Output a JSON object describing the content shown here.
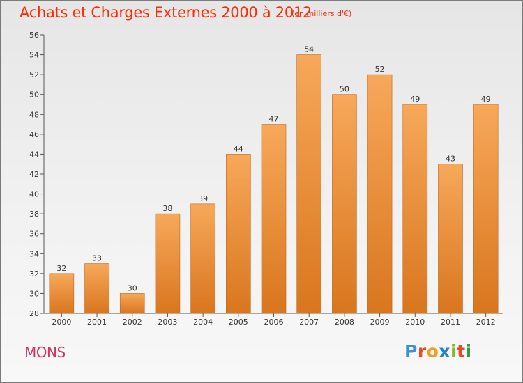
{
  "title": "Achats et Charges Externes 2000 à 2012",
  "subtitle": "(en milliers d'€)",
  "city": "MONS",
  "logo": {
    "text": "Proxiti",
    "colors": [
      "#3a8fd8",
      "#e84a2a",
      "#f0a020",
      "#2a7fd0",
      "#7abf2a",
      "#e84a2a",
      "#2a9f4a"
    ]
  },
  "colors": {
    "bar_top": "#f7a85a",
    "bar_bottom": "#d9761e",
    "bar_edge": "#c26414",
    "title": "#ff2a00",
    "city": "#d43060"
  },
  "chart_data": {
    "type": "bar",
    "categories": [
      "2000",
      "2001",
      "2002",
      "2003",
      "2004",
      "2005",
      "2006",
      "2007",
      "2008",
      "2009",
      "2010",
      "2011",
      "2012"
    ],
    "values": [
      32,
      33,
      30,
      38,
      39,
      44,
      47,
      54,
      50,
      52,
      49,
      43,
      49
    ],
    "yticks": [
      "28",
      "30",
      "32",
      "34",
      "36",
      "38",
      "40",
      "42",
      "44",
      "46",
      "48",
      "50",
      "52",
      "54",
      "56"
    ],
    "ylim": [
      28,
      56
    ],
    "grid": false
  }
}
